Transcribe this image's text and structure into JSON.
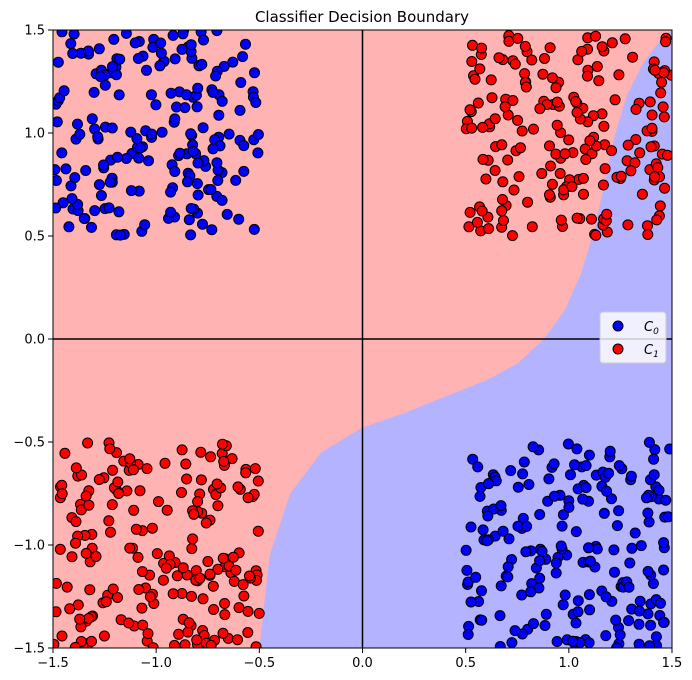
{
  "chart_data": {
    "type": "scatter",
    "title": "Classifier Decision Boundary",
    "xlabel": "",
    "ylabel": "",
    "xlim": [
      -1.5,
      1.5
    ],
    "ylim": [
      -1.5,
      1.5
    ],
    "xticks": [
      -1.5,
      -1.0,
      -0.5,
      0.0,
      0.5,
      1.0,
      1.5
    ],
    "yticks": [
      -1.5,
      -1.0,
      -0.5,
      0.0,
      0.5,
      1.0,
      1.5
    ],
    "xtick_labels": [
      "−1.5",
      "−1.0",
      "−0.5",
      "0.0",
      "0.5",
      "1.0",
      "1.5"
    ],
    "ytick_labels": [
      "−1.5",
      "−1.0",
      "−0.5",
      "0.0",
      "0.5",
      "1.0",
      "1.5"
    ],
    "grid": false,
    "axis_lines": [
      0,
      0
    ],
    "legend_position": "center-right",
    "decision_regions": {
      "C0_region_color": "#b3b3ff",
      "C1_region_color": "#ffb3b3",
      "boundary": [
        [
          -0.5,
          -1.5
        ],
        [
          -0.45,
          -1.05
        ],
        [
          -0.35,
          -0.75
        ],
        [
          -0.2,
          -0.55
        ],
        [
          0.0,
          -0.43
        ],
        [
          0.2,
          -0.36
        ],
        [
          0.4,
          -0.28
        ],
        [
          0.6,
          -0.2
        ],
        [
          0.75,
          -0.12
        ],
        [
          0.88,
          0.0
        ],
        [
          0.98,
          0.14
        ],
        [
          1.06,
          0.32
        ],
        [
          1.12,
          0.52
        ],
        [
          1.17,
          0.74
        ],
        [
          1.22,
          0.98
        ],
        [
          1.28,
          1.18
        ],
        [
          1.36,
          1.34
        ],
        [
          1.45,
          1.46
        ],
        [
          1.5,
          1.5
        ]
      ]
    },
    "series": [
      {
        "name": "C_0",
        "legend_label": "C",
        "legend_sub": "0",
        "color": "#0000ff",
        "clusters": [
          {
            "x_range": [
              -1.5,
              -0.5
            ],
            "y_range": [
              0.5,
              1.5
            ],
            "n": 200
          },
          {
            "x_range": [
              0.5,
              1.5
            ],
            "y_range": [
              -1.5,
              -0.5
            ],
            "n": 200
          }
        ]
      },
      {
        "name": "C_1",
        "legend_label": "C",
        "legend_sub": "1",
        "color": "#ff0000",
        "clusters": [
          {
            "x_range": [
              0.5,
              1.5
            ],
            "y_range": [
              0.5,
              1.5
            ],
            "n": 200
          },
          {
            "x_range": [
              -1.5,
              -0.5
            ],
            "y_range": [
              -1.5,
              -0.5
            ],
            "n": 200
          }
        ]
      }
    ]
  }
}
